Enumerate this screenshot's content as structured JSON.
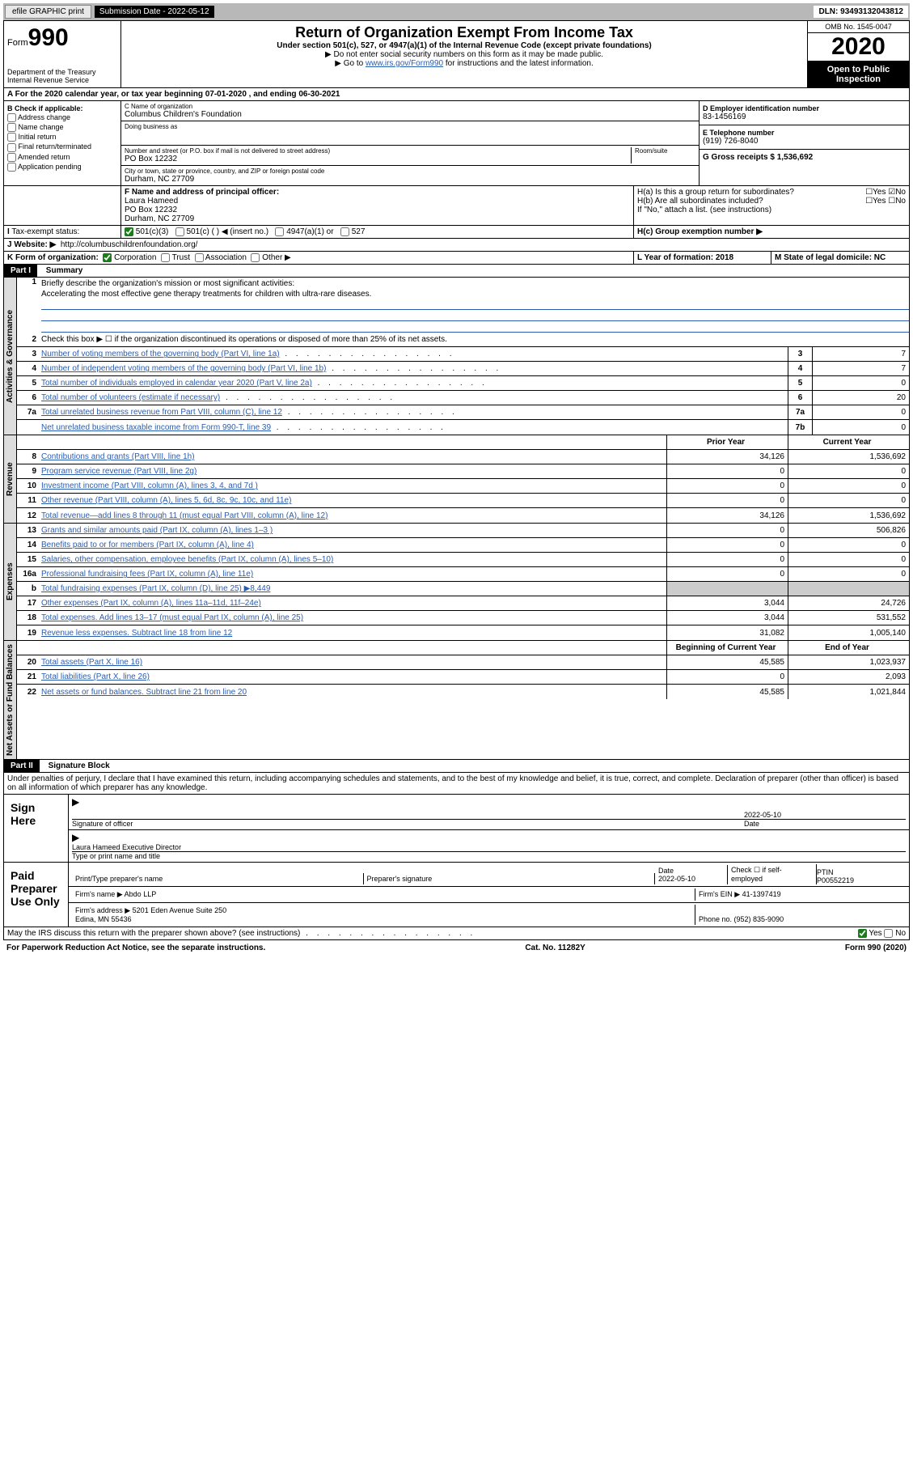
{
  "topbar": {
    "efile": "efile GRAPHIC print",
    "sub_label": "Submission Date - 2022-05-12",
    "dln": "DLN: 93493132043812"
  },
  "header": {
    "form_label": "Form",
    "form_no": "990",
    "dept": "Department of the Treasury Internal Revenue Service",
    "title": "Return of Organization Exempt From Income Tax",
    "subtitle": "Under section 501(c), 527, or 4947(a)(1) of the Internal Revenue Code (except private foundations)",
    "note1": "▶ Do not enter social security numbers on this form as it may be made public.",
    "note2_pre": "▶ Go to ",
    "note2_link": "www.irs.gov/Form990",
    "note2_post": " for instructions and the latest information.",
    "omb": "OMB No. 1545-0047",
    "year": "2020",
    "inspection": "Open to Public Inspection"
  },
  "row_a": "A For the 2020 calendar year, or tax year beginning 07-01-2020    , and ending 06-30-2021",
  "col_b": {
    "header": "B Check if applicable:",
    "items": [
      "Address change",
      "Name change",
      "Initial return",
      "Final return/terminated",
      "Amended return",
      "Application pending"
    ]
  },
  "col_c": {
    "name_label": "C Name of organization",
    "name": "Columbus Children's Foundation",
    "dba_label": "Doing business as",
    "dba": "",
    "addr_label": "Number and street (or P.O. box if mail is not delivered to street address)",
    "addr": "PO Box 12232",
    "room_label": "Room/suite",
    "city_label": "City or town, state or province, country, and ZIP or foreign postal code",
    "city": "Durham, NC  27709"
  },
  "col_d": {
    "ein_label": "D Employer identification number",
    "ein": "83-1456169",
    "phone_label": "E Telephone number",
    "phone": "(919) 726-8040",
    "gross_label": "G Gross receipts $ 1,536,692"
  },
  "row_f": {
    "label": "F  Name and address of principal officer:",
    "name": "Laura Hameed",
    "addr": "PO Box 12232",
    "city": "Durham, NC  27709"
  },
  "row_h": {
    "a": "H(a)  Is this a group return for subordinates?",
    "b": "H(b)  Are all subordinates included?",
    "b_note": "If \"No,\" attach a list. (see instructions)",
    "c": "H(c)  Group exemption number ▶"
  },
  "row_i": {
    "label": "Tax-exempt status:",
    "opts": [
      "501(c)(3)",
      "501(c) (  ) ◀ (insert no.)",
      "4947(a)(1) or",
      "527"
    ]
  },
  "row_j": {
    "label": "J Website: ▶",
    "url": "http://columbuschildrenfoundation.org/"
  },
  "row_k": "K Form of organization:",
  "row_k_opts": [
    "Corporation",
    "Trust",
    "Association",
    "Other ▶"
  ],
  "row_l": "L Year of formation: 2018",
  "row_m": "M State of legal domicile: NC",
  "part1": {
    "label": "Part I",
    "title": "Summary"
  },
  "summary": {
    "gov_label": "Activities & Governance",
    "rev_label": "Revenue",
    "exp_label": "Expenses",
    "net_label": "Net Assets or Fund Balances",
    "q1": "Briefly describe the organization's mission or most significant activities:",
    "q1_ans": "Accelerating the most effective gene therapy treatments for children with ultra-rare diseases.",
    "q2": "Check this box ▶ ☐  if the organization discontinued its operations or disposed of more than 25% of its net assets.",
    "rows": [
      {
        "n": "3",
        "d": "Number of voting members of the governing body (Part VI, line 1a)",
        "b": "3",
        "v": "7"
      },
      {
        "n": "4",
        "d": "Number of independent voting members of the governing body (Part VI, line 1b)",
        "b": "4",
        "v": "7"
      },
      {
        "n": "5",
        "d": "Total number of individuals employed in calendar year 2020 (Part V, line 2a)",
        "b": "5",
        "v": "0"
      },
      {
        "n": "6",
        "d": "Total number of volunteers (estimate if necessary)",
        "b": "6",
        "v": "20"
      },
      {
        "n": "7a",
        "d": "Total unrelated business revenue from Part VIII, column (C), line 12",
        "b": "7a",
        "v": "0"
      },
      {
        "n": "",
        "d": "Net unrelated business taxable income from Form 990-T, line 39",
        "b": "7b",
        "v": "0"
      }
    ],
    "hdr_prior": "Prior Year",
    "hdr_current": "Current Year",
    "rev_rows": [
      {
        "n": "8",
        "d": "Contributions and grants (Part VIII, line 1h)",
        "p": "34,126",
        "c": "1,536,692"
      },
      {
        "n": "9",
        "d": "Program service revenue (Part VIII, line 2g)",
        "p": "0",
        "c": "0"
      },
      {
        "n": "10",
        "d": "Investment income (Part VIII, column (A), lines 3, 4, and 7d )",
        "p": "0",
        "c": "0"
      },
      {
        "n": "11",
        "d": "Other revenue (Part VIII, column (A), lines 5, 6d, 8c, 9c, 10c, and 11e)",
        "p": "0",
        "c": "0"
      },
      {
        "n": "12",
        "d": "Total revenue—add lines 8 through 11 (must equal Part VIII, column (A), line 12)",
        "p": "34,126",
        "c": "1,536,692"
      }
    ],
    "exp_rows": [
      {
        "n": "13",
        "d": "Grants and similar amounts paid (Part IX, column (A), lines 1–3 )",
        "p": "0",
        "c": "506,826"
      },
      {
        "n": "14",
        "d": "Benefits paid to or for members (Part IX, column (A), line 4)",
        "p": "0",
        "c": "0"
      },
      {
        "n": "15",
        "d": "Salaries, other compensation, employee benefits (Part IX, column (A), lines 5–10)",
        "p": "0",
        "c": "0"
      },
      {
        "n": "16a",
        "d": "Professional fundraising fees (Part IX, column (A), line 11e)",
        "p": "0",
        "c": "0"
      },
      {
        "n": "b",
        "d": "Total fundraising expenses (Part IX, column (D), line 25) ▶8,449",
        "p": "",
        "c": "",
        "shade": true
      },
      {
        "n": "17",
        "d": "Other expenses (Part IX, column (A), lines 11a–11d, 11f–24e)",
        "p": "3,044",
        "c": "24,726"
      },
      {
        "n": "18",
        "d": "Total expenses. Add lines 13–17 (must equal Part IX, column (A), line 25)",
        "p": "3,044",
        "c": "531,552"
      },
      {
        "n": "19",
        "d": "Revenue less expenses. Subtract line 18 from line 12",
        "p": "31,082",
        "c": "1,005,140"
      }
    ],
    "hdr_begin": "Beginning of Current Year",
    "hdr_end": "End of Year",
    "net_rows": [
      {
        "n": "20",
        "d": "Total assets (Part X, line 16)",
        "p": "45,585",
        "c": "1,023,937"
      },
      {
        "n": "21",
        "d": "Total liabilities (Part X, line 26)",
        "p": "0",
        "c": "2,093"
      },
      {
        "n": "22",
        "d": "Net assets or fund balances. Subtract line 21 from line 20",
        "p": "45,585",
        "c": "1,021,844"
      }
    ]
  },
  "part2": {
    "label": "Part II",
    "title": "Signature Block"
  },
  "sig_decl": "Under penalties of perjury, I declare that I have examined this return, including accompanying schedules and statements, and to the best of my knowledge and belief, it is true, correct, and complete. Declaration of preparer (other than officer) is based on all information of which preparer has any knowledge.",
  "sign_here": {
    "label": "Sign Here",
    "sig_label": "Signature of officer",
    "date": "2022-05-10",
    "date_label": "Date",
    "name": "Laura Hameed  Executive Director",
    "name_label": "Type or print name and title"
  },
  "paid_prep": {
    "label": "Paid Preparer Use Only",
    "r1": [
      "Print/Type preparer's name",
      "Preparer's signature",
      "Date\n2022-05-10",
      "Check ☐ if self-employed",
      "PTIN\nP00552219"
    ],
    "firm_name_label": "Firm's name    ▶",
    "firm_name": "Abdo LLP",
    "firm_ein": "Firm's EIN ▶ 41-1397419",
    "firm_addr_label": "Firm's address ▶",
    "firm_addr": "5201 Eden Avenue Suite 250\nEdina, MN  55436",
    "firm_phone": "Phone no. (952) 835-9090"
  },
  "irs_discuss": "May the IRS discuss this return with the preparer shown above? (see instructions)",
  "footer": {
    "left": "For Paperwork Reduction Act Notice, see the separate instructions.",
    "mid": "Cat. No. 11282Y",
    "right": "Form 990 (2020)"
  }
}
